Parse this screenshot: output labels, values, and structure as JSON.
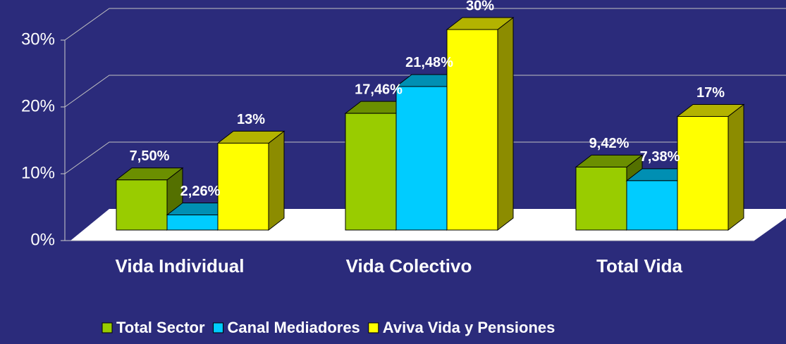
{
  "chart_data": {
    "type": "bar3d",
    "categories": [
      "Vida Individual",
      "Vida Colectivo",
      "Total Vida"
    ],
    "series": [
      {
        "name": "Total Sector",
        "color": "#99cc00",
        "values": [
          7.5,
          17.46,
          9.42
        ],
        "value_labels": [
          "7,50%",
          "17,46%",
          "9,42%"
        ]
      },
      {
        "name": "Canal Mediadores",
        "color": "#00ccff",
        "values": [
          2.26,
          21.48,
          7.38
        ],
        "value_labels": [
          "2,26%",
          "21,48%",
          "7,38%"
        ]
      },
      {
        "name": "Aviva Vida y Pensiones",
        "color": "#ffff00",
        "values": [
          13,
          30,
          17
        ],
        "value_labels": [
          "13%",
          "30%",
          "17%"
        ]
      }
    ],
    "ylim": [
      0,
      30
    ],
    "yticks": [
      {
        "value": 0,
        "label": "0%"
      },
      {
        "value": 10,
        "label": "10%"
      },
      {
        "value": 20,
        "label": "20%"
      },
      {
        "value": 30,
        "label": "30%"
      }
    ],
    "grid": true,
    "legend": "bottom"
  }
}
